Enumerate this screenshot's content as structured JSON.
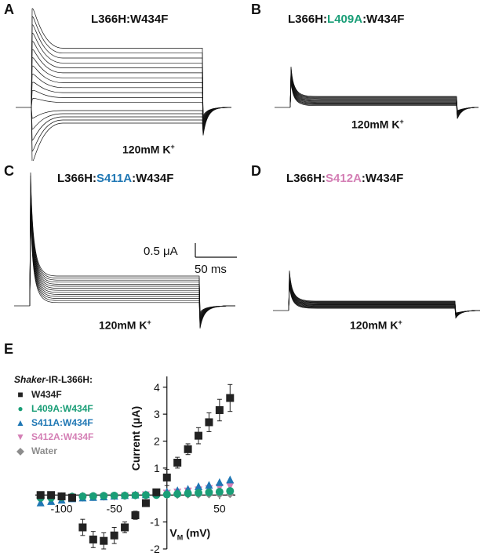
{
  "panels": {
    "a": {
      "letter": "A",
      "title": "L366H:W434F",
      "condition": "120mM K",
      "condition_sup": "+"
    },
    "b": {
      "letter": "B",
      "title_pre": "L366H:",
      "title_mut": "L409A",
      "title_post": ":W434F",
      "mut_color": "#1a9e77",
      "condition": "120mM K",
      "condition_sup": "+"
    },
    "c": {
      "letter": "C",
      "title_pre": "L366H:",
      "title_mut": "S411A",
      "title_post": ":W434F",
      "mut_color": "#1f77b4",
      "condition": "120mM K",
      "condition_sup": "+"
    },
    "d": {
      "letter": "D",
      "title_pre": "L366H:",
      "title_mut": "S412A",
      "title_post": ":W434F",
      "mut_color": "#d47fb5",
      "condition": "120mM K",
      "condition_sup": "+"
    },
    "e": {
      "letter": "E"
    }
  },
  "scale_bar": {
    "current": "0.5 μA",
    "time": "50 ms"
  },
  "legend": {
    "heading_italic": "Shaker",
    "heading_rest": "-IR-L366H:",
    "items": [
      {
        "label": "W434F",
        "color": "#222222",
        "symbol": "■"
      },
      {
        "label": "L409A:W434F",
        "color": "#1a9e77",
        "symbol": "●"
      },
      {
        "label": "S411A:W434F",
        "color": "#1f77b4",
        "symbol": "▲"
      },
      {
        "label": "S412A:W434F",
        "color": "#d47fb5",
        "symbol": "▼"
      },
      {
        "label": "Water",
        "color": "#8c8c8c",
        "symbol": "◆"
      }
    ]
  },
  "chart_data": {
    "type": "scatter",
    "xlabel": "V",
    "xlabel_sub": "M",
    "xlabel_unit": "(mV)",
    "ylabel": "Current (μA)",
    "xlim": [
      -125,
      65
    ],
    "ylim": [
      -2,
      4.4
    ],
    "x_ticks": [
      -100,
      -50,
      0,
      50
    ],
    "x_tick_labels": [
      "-100",
      "-50",
      "",
      "50"
    ],
    "y_ticks": [
      -2,
      -1,
      0,
      1,
      2,
      3,
      4
    ],
    "y_tick_labels": [
      "-2",
      "-1",
      "",
      "1",
      "2",
      "3",
      "4"
    ],
    "series": [
      {
        "name": "W434F",
        "color": "#222222",
        "marker": "square",
        "x": [
          -120,
          -110,
          -100,
          -90,
          -80,
          -70,
          -60,
          -50,
          -40,
          -30,
          -20,
          -10,
          0,
          10,
          20,
          30,
          40,
          50,
          60
        ],
        "y": [
          0.0,
          0.0,
          -0.05,
          -0.1,
          -1.2,
          -1.65,
          -1.7,
          -1.5,
          -1.2,
          -0.75,
          -0.3,
          0.1,
          0.65,
          1.2,
          1.7,
          2.2,
          2.7,
          3.15,
          3.6
        ],
        "err": [
          0.1,
          0.1,
          0.1,
          0.1,
          0.3,
          0.3,
          0.3,
          0.3,
          0.2,
          0.15,
          0.1,
          0.1,
          0.3,
          0.2,
          0.2,
          0.3,
          0.35,
          0.4,
          0.5
        ]
      },
      {
        "name": "L409A:W434F",
        "color": "#1a9e77",
        "marker": "circle",
        "x": [
          -120,
          -110,
          -100,
          -90,
          -80,
          -70,
          -60,
          -50,
          -40,
          -30,
          -20,
          -10,
          0,
          10,
          20,
          30,
          40,
          50,
          60
        ],
        "y": [
          -0.1,
          -0.1,
          -0.08,
          -0.06,
          -0.05,
          -0.04,
          -0.03,
          -0.02,
          -0.02,
          -0.01,
          0.0,
          0.0,
          0.02,
          0.04,
          0.06,
          0.08,
          0.1,
          0.12,
          0.15
        ]
      },
      {
        "name": "S411A:W434F",
        "color": "#1f77b4",
        "marker": "triangle-up",
        "x": [
          -120,
          -110,
          -100,
          -90,
          -80,
          -70,
          -60,
          -50,
          -40,
          -30,
          -20,
          -10,
          0,
          10,
          20,
          30,
          40,
          50,
          60
        ],
        "y": [
          -0.3,
          -0.25,
          -0.2,
          -0.15,
          -0.12,
          -0.1,
          -0.08,
          -0.05,
          -0.03,
          -0.01,
          0.0,
          0.05,
          0.1,
          0.15,
          0.2,
          0.3,
          0.35,
          0.45,
          0.55
        ]
      },
      {
        "name": "S412A:W434F",
        "color": "#d47fb5",
        "marker": "triangle-down",
        "x": [
          -120,
          -110,
          -100,
          -90,
          -80,
          -70,
          -60,
          -50,
          -40,
          -30,
          -20,
          -10,
          0,
          10,
          20,
          30,
          40,
          50,
          60
        ],
        "y": [
          -0.2,
          -0.15,
          -0.12,
          -0.1,
          -0.08,
          -0.06,
          -0.05,
          -0.04,
          -0.02,
          0.0,
          0.02,
          0.05,
          0.08,
          0.12,
          0.16,
          0.2,
          0.25,
          0.3,
          0.35
        ]
      },
      {
        "name": "Water",
        "color": "#8c8c8c",
        "marker": "diamond",
        "x": [
          -120,
          -110,
          -100,
          -90,
          -80,
          -70,
          -60,
          -50,
          -40,
          -30,
          -20,
          -10,
          0,
          10,
          20,
          30,
          40,
          50,
          60
        ],
        "y": [
          -0.05,
          -0.05,
          -0.04,
          -0.04,
          -0.03,
          -0.03,
          -0.02,
          -0.02,
          -0.01,
          -0.01,
          0.0,
          0.0,
          0.0,
          0.0,
          0.01,
          0.01,
          0.02,
          0.02,
          0.03
        ]
      }
    ]
  }
}
